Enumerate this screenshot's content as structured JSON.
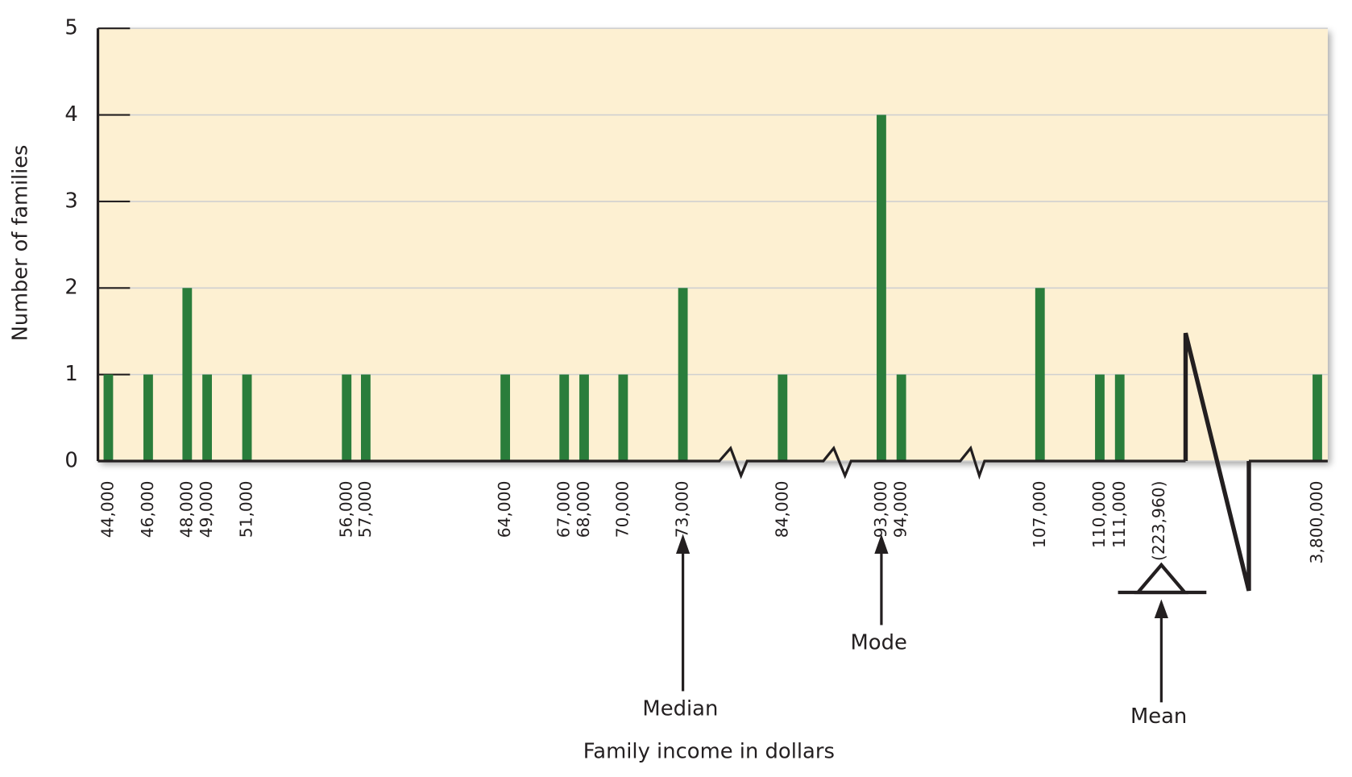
{
  "chart_data": {
    "type": "bar",
    "x_label": "Family income in dollars",
    "y_label": "Number of families",
    "categories": [
      "44,000",
      "46,000",
      "48,000",
      "49,000",
      "51,000",
      "56,000",
      "57,000",
      "64,000",
      "67,000",
      "68,000",
      "70,000",
      "73,000",
      "84,000",
      "93,000",
      "94,000",
      "107,000",
      "110,000",
      "111,000",
      "3,800,000"
    ],
    "values": [
      1,
      1,
      2,
      1,
      1,
      1,
      1,
      1,
      1,
      1,
      1,
      2,
      1,
      4,
      1,
      2,
      1,
      1,
      1
    ],
    "color": "#2a7d3b",
    "ylim": [
      0,
      5
    ],
    "yticks": [
      0,
      1,
      2,
      3,
      4,
      5
    ],
    "grid": true,
    "annotations": {
      "median": "Median",
      "mode": "Mode",
      "mean": "Mean",
      "mean_value": "(223,960)"
    }
  }
}
